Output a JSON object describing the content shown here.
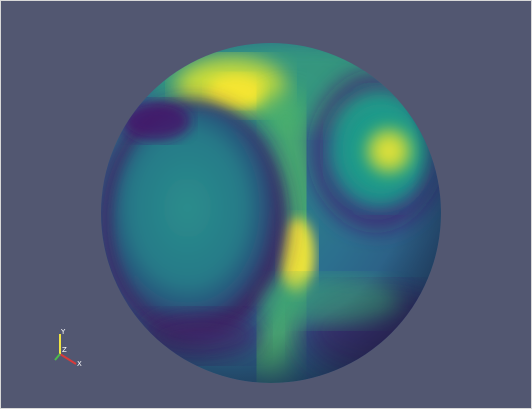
{
  "viewport": {
    "background_color": "#525771",
    "object": "sphere",
    "colormap": "viridis",
    "colormap_stops": [
      "#440154",
      "#3b528b",
      "#21918c",
      "#5ec962",
      "#fde725"
    ]
  },
  "orientation_axes": {
    "x_label": "X",
    "y_label": "Y",
    "z_label": "Z",
    "x_color": "#d83a3a",
    "y_color": "#f0e442",
    "z_color": "#4cbb4c"
  }
}
